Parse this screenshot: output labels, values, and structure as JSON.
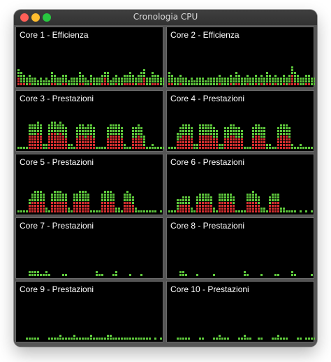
{
  "window": {
    "title": "Cronologia CPU"
  },
  "colors": {
    "user": "#5ec83c",
    "system": "#d62f2f",
    "background": "#000000"
  },
  "panels": [
    {
      "label": "Core 1 - Efficienza",
      "levels": [
        0.38,
        0.3,
        0.25,
        0.22,
        0.28,
        0.18,
        0.22,
        0.15,
        0.2,
        0.12,
        0.18,
        0.14,
        0.3,
        0.25,
        0.2,
        0.18,
        0.24,
        0.28,
        0.15,
        0.2,
        0.22,
        0.18,
        0.3,
        0.24,
        0.2,
        0.15,
        0.28,
        0.22,
        0.18,
        0.2,
        0.24,
        0.32,
        0.3,
        0.15,
        0.2,
        0.25,
        0.22,
        0.18,
        0.24,
        0.28,
        0.3,
        0.24,
        0.2,
        0.24,
        0.3,
        0.36,
        0.22,
        0.2,
        0.3,
        0.24,
        0.25,
        0.2,
        0.18
      ]
    },
    {
      "label": "Core 2 - Efficienza",
      "levels": [
        0.3,
        0.25,
        0.18,
        0.22,
        0.24,
        0.18,
        0.2,
        0.14,
        0.2,
        0.12,
        0.18,
        0.22,
        0.2,
        0.15,
        0.18,
        0.22,
        0.2,
        0.18,
        0.24,
        0.2,
        0.18,
        0.22,
        0.25,
        0.2,
        0.3,
        0.24,
        0.22,
        0.18,
        0.24,
        0.2,
        0.22,
        0.25,
        0.2,
        0.28,
        0.22,
        0.3,
        0.25,
        0.2,
        0.24,
        0.2,
        0.22,
        0.28,
        0.2,
        0.24,
        0.42,
        0.3,
        0.25,
        0.22,
        0.2,
        0.24,
        0.25,
        0.2,
        0.22
      ]
    },
    {
      "label": "Core 3 - Prestazioni",
      "levels": [
        0.04,
        0.05,
        0.04,
        0.05,
        0.55,
        0.58,
        0.6,
        0.62,
        0.6,
        0.12,
        0.1,
        0.6,
        0.62,
        0.64,
        0.6,
        0.62,
        0.58,
        0.5,
        0.15,
        0.1,
        0.08,
        0.52,
        0.55,
        0.58,
        0.54,
        0.58,
        0.56,
        0.5,
        0.05,
        0.08,
        0.06,
        0.04,
        0.52,
        0.56,
        0.58,
        0.6,
        0.58,
        0.5,
        0.1,
        0.08,
        0.06,
        0.5,
        0.52,
        0.55,
        0.5,
        0.3,
        0.08,
        0.06,
        0.1,
        0.08,
        0.06,
        0.05,
        0.04
      ]
    },
    {
      "label": "Core 4 - Prestazioni",
      "levels": [
        0.05,
        0.06,
        0.05,
        0.4,
        0.5,
        0.55,
        0.58,
        0.56,
        0.52,
        0.15,
        0.1,
        0.55,
        0.58,
        0.56,
        0.6,
        0.55,
        0.5,
        0.45,
        0.12,
        0.1,
        0.52,
        0.54,
        0.55,
        0.56,
        0.52,
        0.5,
        0.48,
        0.08,
        0.06,
        0.05,
        0.5,
        0.55,
        0.56,
        0.54,
        0.5,
        0.15,
        0.1,
        0.08,
        0.06,
        0.52,
        0.55,
        0.56,
        0.55,
        0.5,
        0.12,
        0.08,
        0.06,
        0.1,
        0.08,
        0.06,
        0.05,
        0.04,
        0.03
      ]
    },
    {
      "label": "Core 5 - Prestazioni",
      "levels": [
        0.04,
        0.05,
        0.04,
        0.06,
        0.35,
        0.45,
        0.5,
        0.52,
        0.5,
        0.48,
        0.1,
        0.08,
        0.45,
        0.5,
        0.52,
        0.5,
        0.48,
        0.45,
        0.1,
        0.08,
        0.42,
        0.48,
        0.5,
        0.52,
        0.5,
        0.45,
        0.08,
        0.06,
        0.05,
        0.04,
        0.45,
        0.5,
        0.52,
        0.5,
        0.45,
        0.12,
        0.1,
        0.08,
        0.45,
        0.5,
        0.48,
        0.4,
        0.1,
        0.08,
        0.06,
        0.05,
        0.04,
        0.06,
        0.05,
        0.04,
        0.03,
        0.04,
        0.03
      ]
    },
    {
      "label": "Core 6 - Prestazioni",
      "levels": [
        0.04,
        0.05,
        0.04,
        0.3,
        0.35,
        0.38,
        0.4,
        0.36,
        0.1,
        0.08,
        0.4,
        0.45,
        0.48,
        0.46,
        0.44,
        0.4,
        0.1,
        0.08,
        0.42,
        0.45,
        0.48,
        0.46,
        0.44,
        0.4,
        0.08,
        0.06,
        0.05,
        0.04,
        0.45,
        0.48,
        0.5,
        0.46,
        0.4,
        0.12,
        0.1,
        0.08,
        0.4,
        0.45,
        0.46,
        0.42,
        0.12,
        0.1,
        0.08,
        0.06,
        0.05,
        0.04,
        0.03,
        0.04,
        0.03,
        0.04,
        0.03,
        0.04,
        0.03
      ]
    },
    {
      "label": "Core 7 - Prestazioni",
      "levels": [
        0,
        0,
        0,
        0,
        0.14,
        0.16,
        0.12,
        0.1,
        0.08,
        0.06,
        0.1,
        0.08,
        0,
        0,
        0,
        0,
        0.06,
        0.08,
        0,
        0,
        0,
        0,
        0,
        0,
        0,
        0,
        0,
        0,
        0.1,
        0.08,
        0.06,
        0,
        0,
        0,
        0.08,
        0.1,
        0,
        0,
        0,
        0,
        0.06,
        0,
        0,
        0,
        0.08,
        0,
        0,
        0,
        0,
        0,
        0,
        0,
        0
      ]
    },
    {
      "label": "Core 8 - Prestazioni",
      "levels": [
        0,
        0,
        0,
        0,
        0.12,
        0.1,
        0.08,
        0,
        0,
        0,
        0.06,
        0,
        0,
        0,
        0,
        0,
        0.08,
        0,
        0,
        0,
        0,
        0,
        0,
        0,
        0,
        0,
        0,
        0.1,
        0.08,
        0,
        0,
        0,
        0,
        0.06,
        0,
        0,
        0,
        0,
        0.08,
        0.06,
        0,
        0,
        0,
        0,
        0.1,
        0.08,
        0,
        0,
        0,
        0,
        0,
        0.06,
        0
      ]
    },
    {
      "label": "Core 9 - Prestazioni",
      "levels": [
        0,
        0,
        0,
        0.08,
        0.06,
        0.05,
        0.08,
        0.06,
        0,
        0,
        0,
        0.05,
        0.06,
        0.08,
        0.06,
        0.1,
        0.08,
        0.06,
        0.05,
        0.08,
        0.1,
        0.08,
        0.06,
        0.05,
        0.06,
        0.08,
        0.1,
        0.08,
        0.06,
        0.05,
        0.06,
        0.08,
        0.1,
        0.12,
        0.08,
        0.06,
        0.05,
        0.06,
        0.08,
        0.06,
        0.05,
        0.04,
        0.06,
        0.05,
        0.04,
        0.06,
        0.05,
        0.04,
        0.03,
        0.04,
        0.03,
        0.04,
        0.03
      ]
    },
    {
      "label": "Core 10 - Prestazioni",
      "levels": [
        0,
        0,
        0,
        0.06,
        0.08,
        0.06,
        0.05,
        0.06,
        0,
        0,
        0,
        0.05,
        0.06,
        0,
        0,
        0,
        0.06,
        0.08,
        0.1,
        0.08,
        0.06,
        0.05,
        0,
        0,
        0,
        0.06,
        0.08,
        0.1,
        0.08,
        0.06,
        0,
        0,
        0.05,
        0.06,
        0,
        0,
        0,
        0.06,
        0.08,
        0.1,
        0.08,
        0.06,
        0.05,
        0,
        0,
        0,
        0.06,
        0.05,
        0,
        0.06,
        0.05,
        0.04,
        0.06
      ]
    }
  ]
}
